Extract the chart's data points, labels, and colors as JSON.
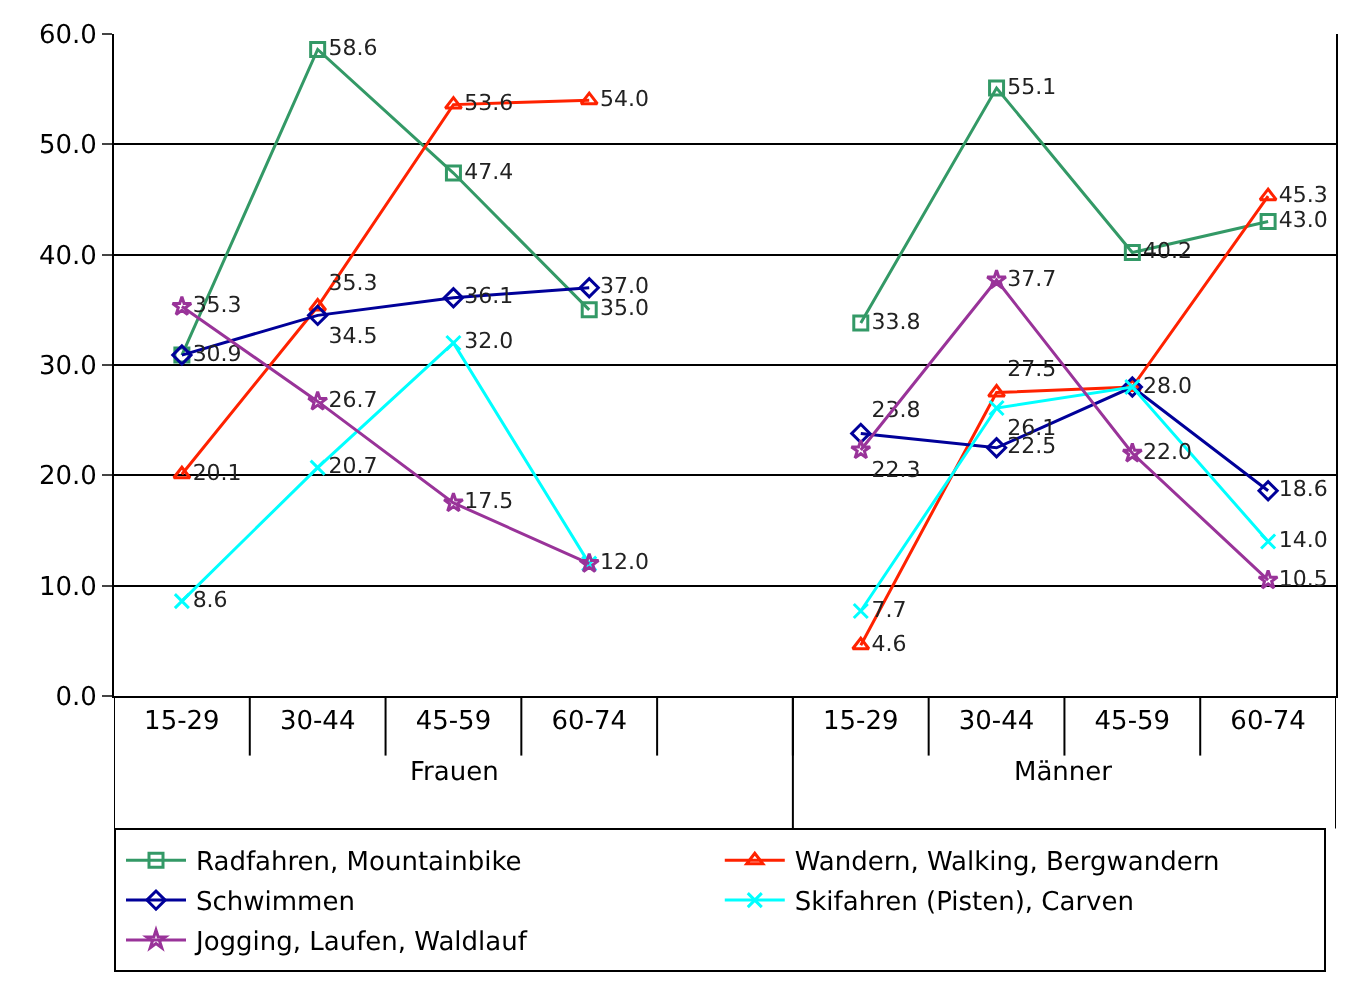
{
  "chart_data": {
    "type": "line",
    "categories": [
      "15-29",
      "30-44",
      "45-59",
      "60-74",
      null,
      "15-29",
      "30-44",
      "45-59",
      "60-74"
    ],
    "annotations": [
      "Frauen",
      "Männer"
    ],
    "ylim": [
      0,
      60
    ],
    "yticks": [
      {
        "value": 0,
        "label": "0.0"
      },
      {
        "value": 10,
        "label": "10.0"
      },
      {
        "value": 20,
        "label": "20.0"
      },
      {
        "value": 30,
        "label": "30.0"
      },
      {
        "value": 40,
        "label": "40.0"
      },
      {
        "value": 50,
        "label": "50.0"
      },
      {
        "value": 60,
        "label": "60.0"
      }
    ],
    "grid": "y",
    "legend": "bottom",
    "series": [
      {
        "name": "Radfahren, Mountainbike",
        "color": "#339966",
        "marker": "square",
        "values": [
          30.9,
          58.6,
          47.4,
          35.0,
          null,
          33.8,
          55.1,
          40.2,
          43.0
        ],
        "value_labels": [
          null,
          "58.6",
          "47.4",
          "35.0",
          null,
          "33.8",
          "55.1",
          "40.2",
          "43.0"
        ]
      },
      {
        "name": "Wandern, Walking, Bergwandern",
        "color": "#ff2200",
        "marker": "triangle",
        "values": [
          20.1,
          35.3,
          53.6,
          54.0,
          null,
          4.6,
          27.5,
          28.0,
          45.3
        ],
        "value_labels": [
          "20.1",
          "35.3",
          "53.6",
          "54.0",
          null,
          "4.6",
          "27.5",
          null,
          "45.3"
        ]
      },
      {
        "name": "Schwimmen",
        "color": "#000099",
        "marker": "diamond",
        "values": [
          30.9,
          34.5,
          36.1,
          37.0,
          null,
          23.8,
          22.5,
          28.0,
          18.6
        ],
        "value_labels": [
          "30.9",
          "34.5",
          "36.1",
          "37.0",
          null,
          "23.8",
          "22.5",
          "28.0",
          "18.6"
        ]
      },
      {
        "name": "Skifahren (Pisten), Carven",
        "color": "#00ffff",
        "marker": "cross",
        "values": [
          8.6,
          20.7,
          32.0,
          12.0,
          null,
          7.7,
          26.1,
          28.0,
          14.0
        ],
        "value_labels": [
          "8.6",
          "20.7",
          "32.0",
          null,
          null,
          "7.7",
          "26.1",
          null,
          "14.0"
        ]
      },
      {
        "name": "Jogging, Laufen, Waldlauf",
        "color": "#993399",
        "marker": "star",
        "values": [
          35.3,
          26.7,
          17.5,
          12.0,
          null,
          22.3,
          37.7,
          22.0,
          10.5
        ],
        "value_labels": [
          "35.3",
          "26.7",
          "17.5",
          "12.0",
          null,
          "22.3",
          "37.7",
          "22.0",
          "10.5"
        ]
      }
    ]
  }
}
